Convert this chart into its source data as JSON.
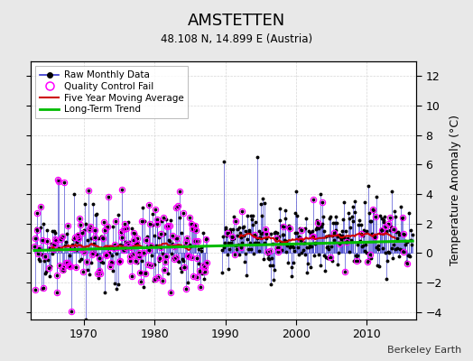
{
  "title": "AMSTETTEN",
  "subtitle": "48.108 N, 14.899 E (Austria)",
  "credit": "Berkeley Earth",
  "ylabel": "Temperature Anomaly (°C)",
  "ylim": [
    -4.5,
    13
  ],
  "yticks": [
    -4,
    -2,
    0,
    2,
    4,
    6,
    8,
    10,
    12
  ],
  "xlim": [
    1962.5,
    2017
  ],
  "xticks": [
    1970,
    1980,
    1990,
    2000,
    2010
  ],
  "bg_color": "#e8e8e8",
  "plot_bg_color": "#ffffff",
  "raw_line_color": "#3333cc",
  "raw_marker_color": "#000000",
  "qc_fail_color": "#ff00ff",
  "moving_avg_color": "#cc0000",
  "trend_color": "#00bb00",
  "seed": 17
}
